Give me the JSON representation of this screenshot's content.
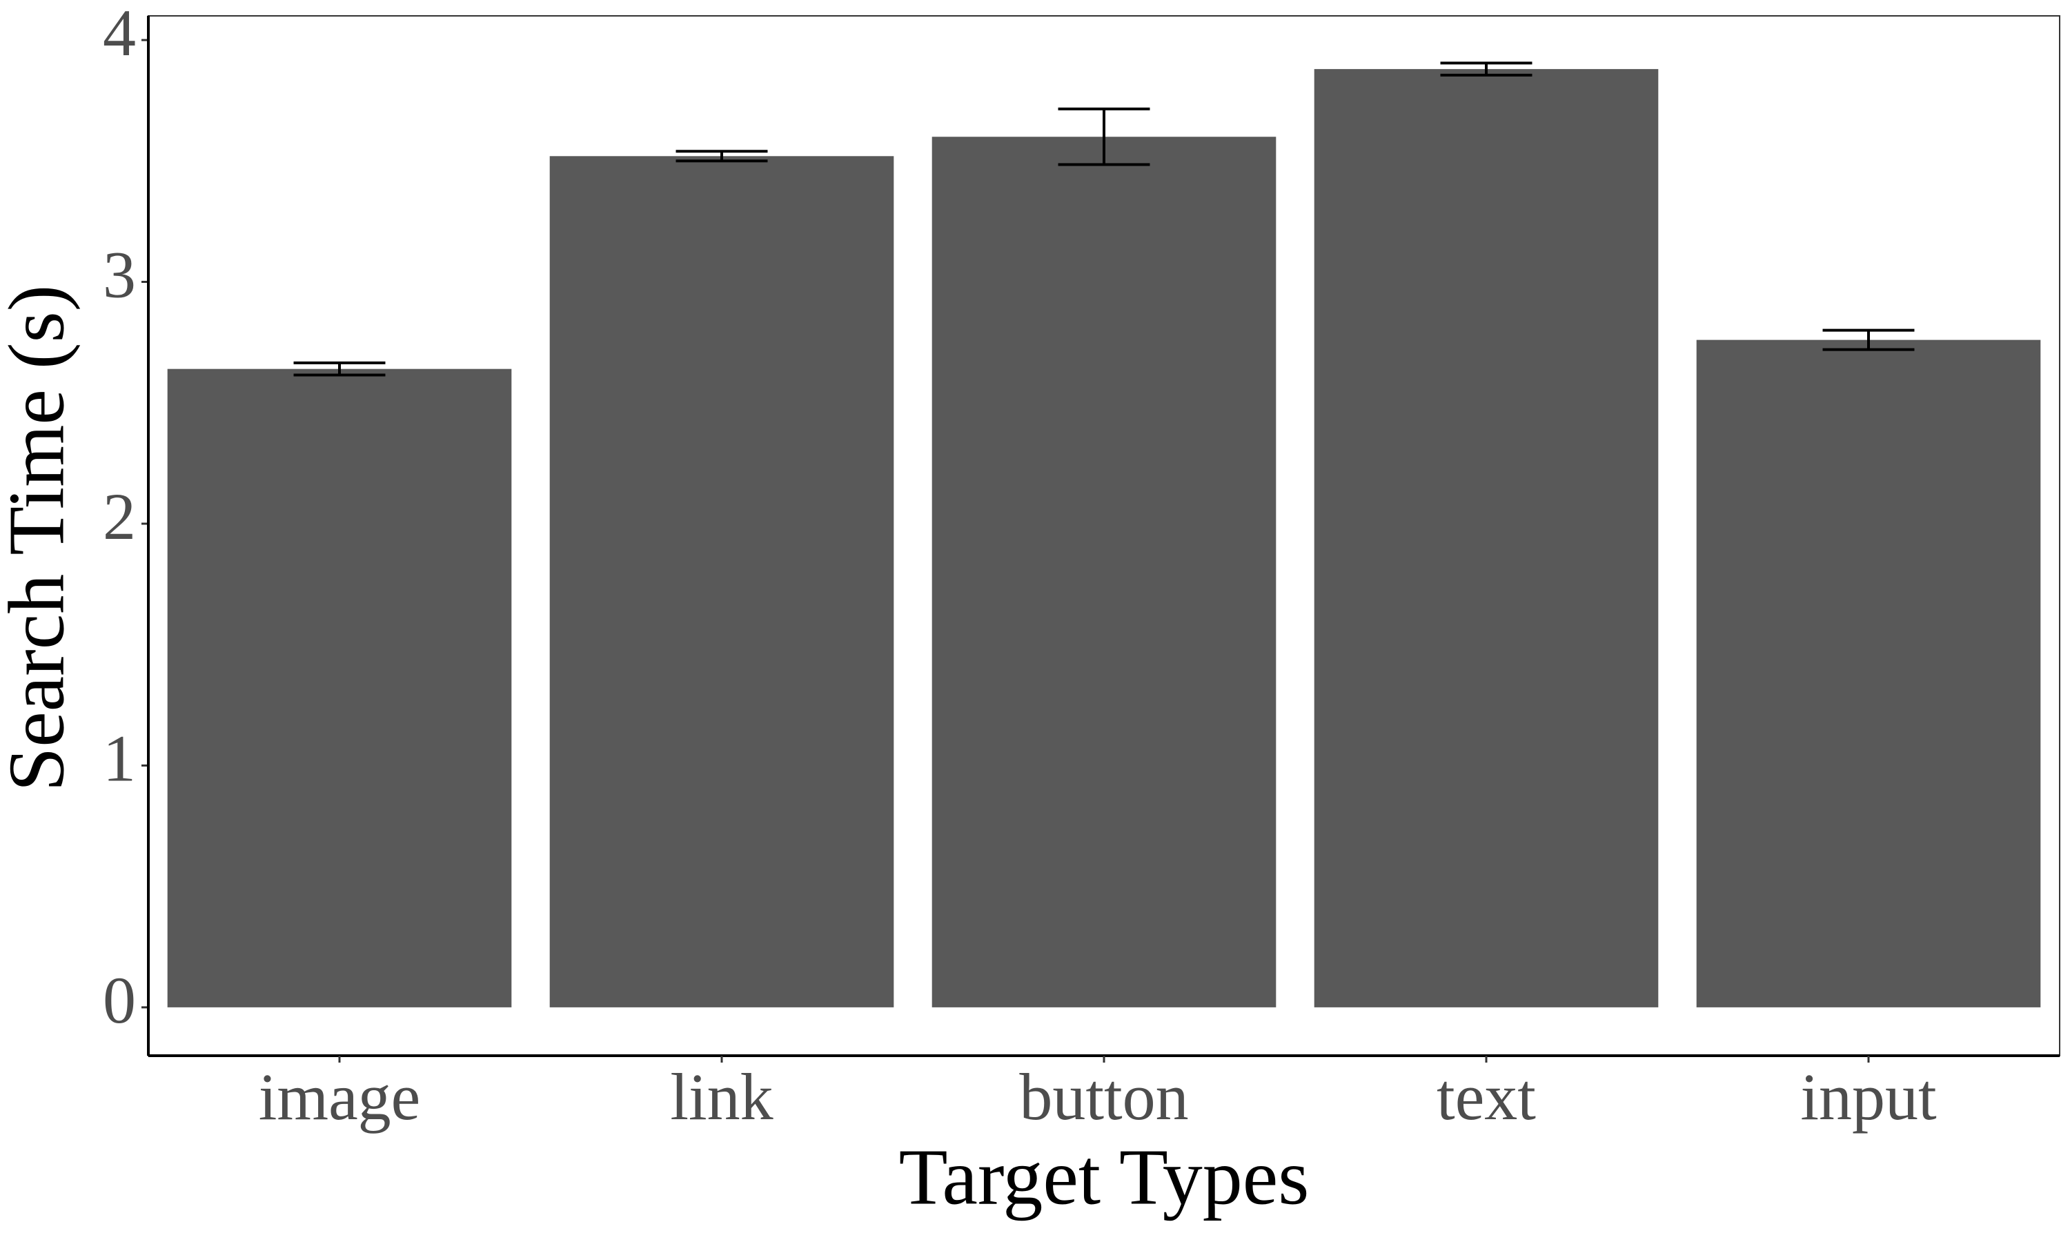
{
  "chart_data": {
    "type": "bar",
    "x_label": "Target Types",
    "y_label": "Search Time (s)",
    "categories": [
      "image",
      "link",
      "button",
      "text",
      "input"
    ],
    "values": [
      2.64,
      3.52,
      3.6,
      3.88,
      2.76
    ],
    "errors": [
      0.025,
      0.02,
      0.115,
      0.025,
      0.04
    ],
    "color": "#595959",
    "ylim": [
      -0.2,
      4.1
    ],
    "yticks": [
      0,
      1,
      2,
      3,
      4
    ],
    "grid": false
  }
}
